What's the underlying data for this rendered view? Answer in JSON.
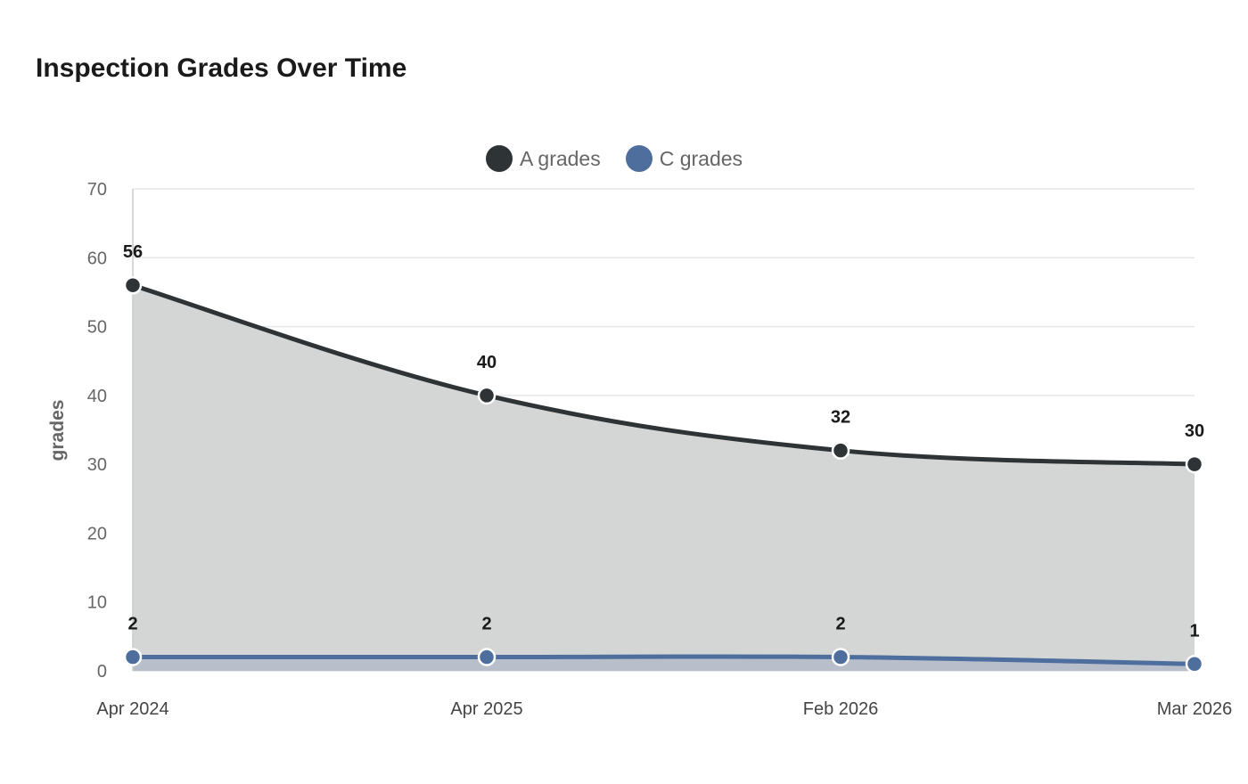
{
  "colors": {
    "a_grades": "#2e3436",
    "c_grades": "#4e6f9e",
    "a_fill": "#d4d6d5",
    "c_fill": "#b8bfcb",
    "grid": "#e6e6e6"
  },
  "chart_data": {
    "type": "area",
    "title": "Inspection Grades Over Time",
    "xlabel": "",
    "ylabel": "grades",
    "categories": [
      "Apr 2024",
      "Apr 2025",
      "Feb 2026",
      "Mar 2026"
    ],
    "series": [
      {
        "name": "A grades",
        "values": [
          56,
          40,
          32,
          30
        ]
      },
      {
        "name": "C grades",
        "values": [
          2,
          2,
          2,
          1
        ]
      }
    ],
    "ylim": [
      0,
      70
    ],
    "yticks": [
      0,
      10,
      20,
      30,
      40,
      50,
      60,
      70
    ],
    "grid": true,
    "legend_position": "top-center",
    "data_labels": true
  }
}
